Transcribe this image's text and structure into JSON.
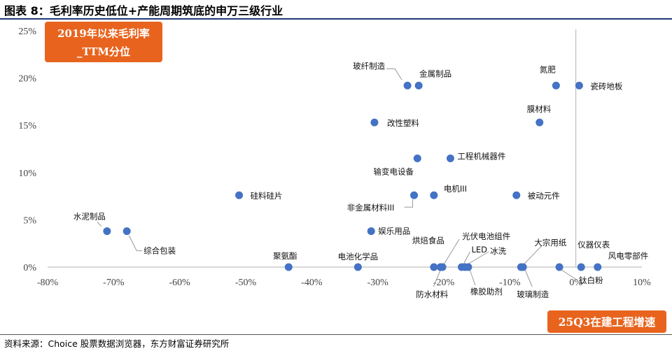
{
  "figure": {
    "title": "图表 8：毛利率历史低位+产能周期筑底的申万三级行业",
    "source": "资料来源：Choice 股票数据浏览器，东方财富证券研究所"
  },
  "colors": {
    "point": "#4472c4",
    "badge": "#e8641e",
    "rule": "#1f3a78"
  },
  "chart_data": {
    "type": "scatter",
    "title": "图表 8：毛利率历史低位+产能周期筑底的申万三级行业",
    "ylabel": "2019年以来毛利率_TTM分位",
    "xlabel": "25Q3在建工程增速",
    "ylabel_lines": [
      "2019年以来毛利率",
      "_TTM分位"
    ],
    "xlim": [
      -80,
      10
    ],
    "ylim": [
      0,
      25
    ],
    "x_ticks": [
      -80,
      -70,
      -60,
      -50,
      -40,
      -30,
      -20,
      -10,
      0,
      10
    ],
    "y_ticks": [
      0,
      5,
      10,
      15,
      20,
      25
    ],
    "x_tick_labels": [
      "-80%",
      "-70%",
      "-60%",
      "-50%",
      "-40%",
      "-30%",
      "-20%",
      "-10%",
      "0%",
      "10%"
    ],
    "y_tick_labels": [
      "0%",
      "5%",
      "10%",
      "15%",
      "20%",
      "25%"
    ],
    "grid": false,
    "points": [
      {
        "name": "玻纤制造",
        "x": -25.5,
        "y": 19.2
      },
      {
        "name": "金属制品",
        "x": -23.8,
        "y": 19.2
      },
      {
        "name": "氮肥",
        "x": -3.0,
        "y": 19.2
      },
      {
        "name": "瓷砖地板",
        "x": 0.5,
        "y": 19.2
      },
      {
        "name": "改性塑料",
        "x": -30.5,
        "y": 15.3
      },
      {
        "name": "膜材料",
        "x": -5.5,
        "y": 15.3
      },
      {
        "name": "输变电设备",
        "x": -24.0,
        "y": 11.5
      },
      {
        "name": "工程机械器件",
        "x": -19.0,
        "y": 11.5
      },
      {
        "name": "硅料硅片",
        "x": -51.0,
        "y": 7.6
      },
      {
        "name": "非金属材料III",
        "x": -24.5,
        "y": 7.6
      },
      {
        "name": "电机III",
        "x": -21.5,
        "y": 7.6
      },
      {
        "name": "被动元件",
        "x": -9.0,
        "y": 7.6
      },
      {
        "name": "水泥制品",
        "x": -71.0,
        "y": 3.8
      },
      {
        "name": "综合包装",
        "x": -68.0,
        "y": 3.8
      },
      {
        "name": "娱乐用品",
        "x": -31.0,
        "y": 3.8
      },
      {
        "name": "聚氨酯",
        "x": -43.5,
        "y": 0
      },
      {
        "name": "电池化学品",
        "x": -33.0,
        "y": 0
      },
      {
        "name": "烘焙食品",
        "x": -21.5,
        "y": 0
      },
      {
        "name": "防水材料",
        "x": -20.5,
        "y": 0
      },
      {
        "name": "光伏电池组件",
        "x": -20.2,
        "y": 0
      },
      {
        "name": "LED",
        "x": -17.3,
        "y": 0
      },
      {
        "name": "冰洗",
        "x": -16.8,
        "y": 0
      },
      {
        "name": "橡胶助剂",
        "x": -16.3,
        "y": 0
      },
      {
        "name": "大宗用纸",
        "x": -8.3,
        "y": 0
      },
      {
        "name": "玻璃制造",
        "x": -8.0,
        "y": 0
      },
      {
        "name": "钛白粉",
        "x": -2.5,
        "y": 0
      },
      {
        "name": "仪器仪表",
        "x": 0.8,
        "y": 0
      },
      {
        "name": "风电零部件",
        "x": 3.3,
        "y": 0
      }
    ]
  }
}
